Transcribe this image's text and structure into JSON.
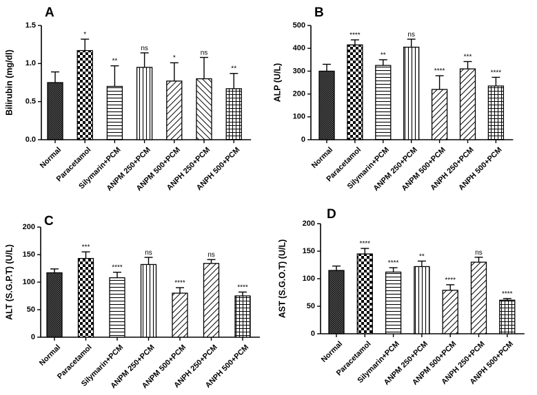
{
  "chart_data": [
    {
      "type": "bar",
      "panel": "A",
      "ylabel": "Bilirubin (mg/dl)",
      "ylim": [
        0,
        1.5
      ],
      "yticks": [
        0,
        0.5,
        1,
        1.5
      ],
      "ytick_labels": [
        "0.0",
        "0.5",
        "1.0",
        "1.5"
      ],
      "categories": [
        "Normal",
        "Paracetamol",
        "Silymarin+PCM",
        "ANPM 250+PCM",
        "ANPM 500+PCM",
        "ANPH 250+PCM",
        "ANPH 500+PCM"
      ],
      "values": [
        0.75,
        1.17,
        0.7,
        0.95,
        0.77,
        0.8,
        0.67
      ],
      "errors": [
        0.14,
        0.15,
        0.27,
        0.19,
        0.24,
        0.28,
        0.2
      ],
      "significance": [
        "",
        "*",
        "**",
        "ns",
        "*",
        "ns",
        "**"
      ],
      "patterns": [
        "dense",
        "checker",
        "hlines",
        "vlines",
        "diag",
        "backdiag",
        "grid"
      ]
    },
    {
      "type": "bar",
      "panel": "B",
      "ylabel": "ALP (U/L)",
      "ylim": [
        0,
        500
      ],
      "yticks": [
        0,
        100,
        200,
        300,
        400,
        500
      ],
      "ytick_labels": [
        "0",
        "100",
        "200",
        "300",
        "400",
        "500"
      ],
      "categories": [
        "Normal",
        "Paracetamol",
        "Silymarin+PCM",
        "ANPM 250+PCM",
        "ANPM 500+PCM",
        "ANPH 250+PCM",
        "ANPH 500+PCM"
      ],
      "values": [
        300,
        415,
        325,
        405,
        220,
        310,
        235
      ],
      "errors": [
        30,
        22,
        25,
        35,
        60,
        32,
        38
      ],
      "significance": [
        "",
        "****",
        "**",
        "ns",
        "****",
        "***",
        "****"
      ],
      "patterns": [
        "dense",
        "checker",
        "hlines",
        "vlines",
        "diag",
        "diag",
        "grid"
      ]
    },
    {
      "type": "bar",
      "panel": "C",
      "ylabel": "ALT (S.G.P.T) (U/L)",
      "ylim": [
        0,
        200
      ],
      "yticks": [
        0,
        50,
        100,
        150,
        200
      ],
      "ytick_labels": [
        "0",
        "50",
        "100",
        "150",
        "200"
      ],
      "categories": [
        "Normal",
        "Paracetamol",
        "Silymarin+PCM",
        "ANPM 250+PCM",
        "ANPM 500+PCM",
        "ANPH 250+PCM",
        "ANPH 500+PCM"
      ],
      "values": [
        117,
        143,
        108,
        132,
        80,
        134,
        75
      ],
      "errors": [
        7,
        12,
        10,
        13,
        10,
        7,
        7
      ],
      "significance": [
        "",
        "***",
        "****",
        "ns",
        "****",
        "ns",
        "****"
      ],
      "patterns": [
        "dense",
        "checker",
        "hlines",
        "vlines",
        "diag",
        "diag",
        "grid"
      ]
    },
    {
      "type": "bar",
      "panel": "D",
      "ylabel": "AST (S.G.O.T) (U/L)",
      "ylim": [
        0,
        200
      ],
      "yticks": [
        0,
        50,
        100,
        150,
        200
      ],
      "ytick_labels": [
        "0",
        "50",
        "100",
        "150",
        "200"
      ],
      "categories": [
        "Normal",
        "Paracetamol",
        "Silymarin+PCM",
        "ANPM 250+PCM",
        "ANPM 500+PCM",
        "ANPH 250+PCM",
        "ANPH 500+PCM"
      ],
      "values": [
        115,
        145,
        112,
        122,
        79,
        130,
        61
      ],
      "errors": [
        8,
        10,
        8,
        10,
        10,
        9,
        3
      ],
      "significance": [
        "",
        "****",
        "****",
        "**",
        "****",
        "ns",
        "****"
      ],
      "patterns": [
        "dense",
        "checker",
        "hlines",
        "vlines",
        "diag",
        "diag",
        "grid"
      ]
    }
  ]
}
